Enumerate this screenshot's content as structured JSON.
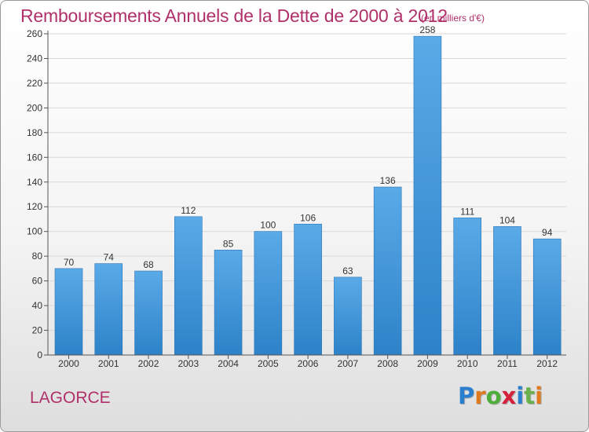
{
  "title": "Remboursements Annuels de la Dette de 2000 à 2012",
  "subtitle": "(en milliers d'€)",
  "city": "LAGORCE",
  "logo": {
    "letters": [
      "P",
      "r",
      "o",
      "x",
      "i",
      "t",
      "i"
    ],
    "colors": [
      "#2a7fcf",
      "#e07a1f",
      "#4fae3a",
      "#d6213a",
      "#2a7fcf",
      "#6ab04c",
      "#e07a1f"
    ]
  },
  "colors": {
    "bar_top": "#5aaae8",
    "bar_bottom": "#2d82c8",
    "text_accent": "#b0306a",
    "axis": "#555555"
  },
  "chart_data": {
    "type": "bar",
    "categories": [
      "2000",
      "2001",
      "2002",
      "2003",
      "2004",
      "2005",
      "2006",
      "2007",
      "2008",
      "2009",
      "2010",
      "2011",
      "2012"
    ],
    "values": [
      70,
      74,
      68,
      112,
      85,
      100,
      106,
      63,
      136,
      258,
      111,
      104,
      94
    ],
    "data_labels": [
      "70",
      "74",
      "68",
      "112",
      "85",
      "100",
      "106",
      "63",
      "136",
      "258",
      "111",
      "104",
      "94"
    ],
    "yticks": [
      "0",
      "20",
      "40",
      "60",
      "80",
      "100",
      "120",
      "140",
      "160",
      "180",
      "200",
      "220",
      "240",
      "260"
    ],
    "ylim": [
      0,
      260
    ],
    "grid": true
  }
}
